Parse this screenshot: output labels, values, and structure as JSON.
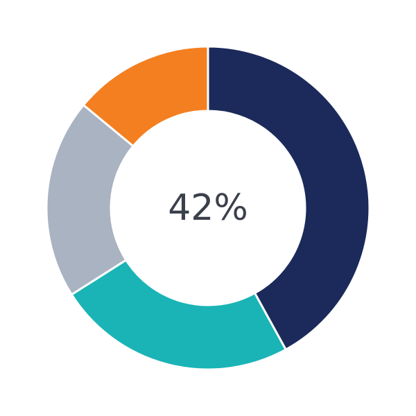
{
  "chart_data": {
    "type": "pie",
    "variant": "donut",
    "center_label": "42%",
    "values": [
      42,
      24,
      20,
      14
    ],
    "colors": [
      "#1b2a5a",
      "#1ab4b6",
      "#a9b3c1",
      "#f47f20"
    ],
    "start": "top",
    "direction": "clockwise",
    "legend": "none"
  }
}
